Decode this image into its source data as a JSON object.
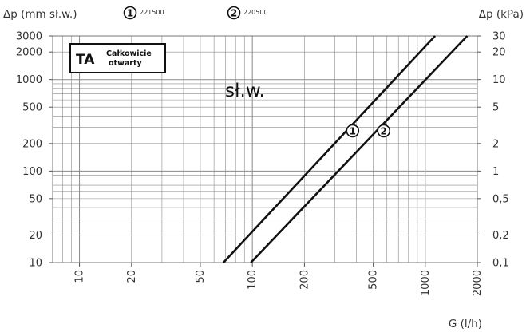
{
  "chart_data": {
    "type": "line",
    "xscale": "log",
    "yscale": "log",
    "xlabel": "G (l/h)",
    "ylabel_left": "Δp (mm sł.w.)",
    "ylabel_right": "Δp (kPa)",
    "xlim": [
      7,
      2000
    ],
    "ylim": [
      10,
      3000
    ],
    "grid": true,
    "x_ticks": [
      {
        "value": 10,
        "label": "10"
      },
      {
        "value": 20,
        "label": "20"
      },
      {
        "value": 50,
        "label": "50"
      },
      {
        "value": 100,
        "label": "100"
      },
      {
        "value": 200,
        "label": "200"
      },
      {
        "value": 500,
        "label": "500"
      },
      {
        "value": 1000,
        "label": "1000"
      },
      {
        "value": 2000,
        "label": "2000"
      }
    ],
    "y_ticks_left": [
      {
        "value": 10,
        "label": "10"
      },
      {
        "value": 20,
        "label": "20"
      },
      {
        "value": 50,
        "label": "50"
      },
      {
        "value": 100,
        "label": "100"
      },
      {
        "value": 200,
        "label": "200"
      },
      {
        "value": 500,
        "label": "500"
      },
      {
        "value": 1000,
        "label": "1000"
      },
      {
        "value": 2000,
        "label": "2000"
      },
      {
        "value": 3000,
        "label": "3000"
      }
    ],
    "y_ticks_right": [
      {
        "value": 10,
        "label": "0,1"
      },
      {
        "value": 20,
        "label": "0,2"
      },
      {
        "value": 50,
        "label": "0,5"
      },
      {
        "value": 100,
        "label": "1"
      },
      {
        "value": 200,
        "label": "2"
      },
      {
        "value": 500,
        "label": "5"
      },
      {
        "value": 1000,
        "label": "10"
      },
      {
        "value": 2000,
        "label": "20"
      },
      {
        "value": 3000,
        "label": "30"
      }
    ],
    "series": [
      {
        "marker": "1",
        "code": "221500",
        "x": [
          68,
          1140
        ],
        "y": [
          10,
          3000
        ],
        "marker_at": [
          380,
          275
        ]
      },
      {
        "marker": "2",
        "code": "220500",
        "x": [
          98,
          1750
        ],
        "y": [
          10,
          3000
        ],
        "marker_at": [
          575,
          275
        ]
      }
    ],
    "legend": [
      {
        "marker": "1",
        "code": "221500"
      },
      {
        "marker": "2",
        "code": "220500"
      }
    ],
    "info_box": {
      "big": "TA",
      "line1": "Całkowicie",
      "line2": "otwarty"
    },
    "annotation": "sł.w."
  },
  "colors": {
    "grid": "#8a8a8a",
    "line": "#111111",
    "text": "#333333"
  }
}
